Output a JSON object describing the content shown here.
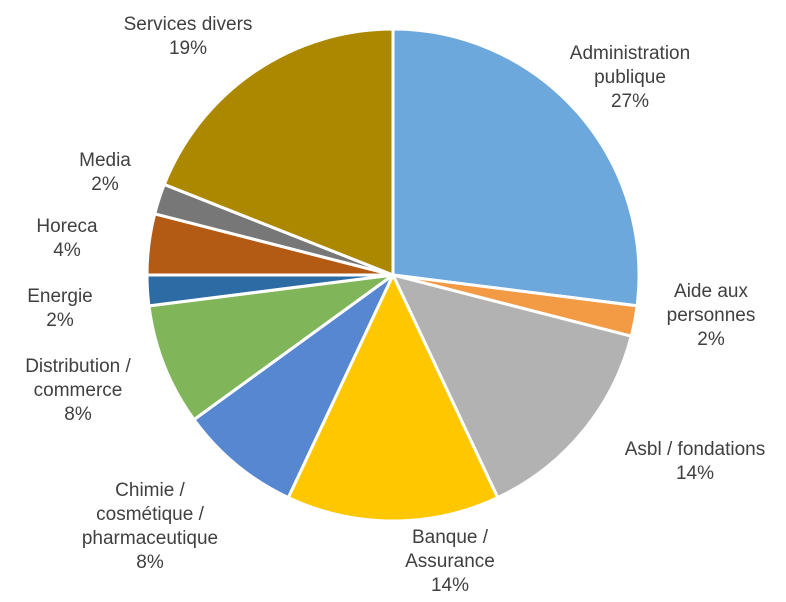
{
  "chart_data": {
    "type": "pie",
    "title": "",
    "slices": [
      {
        "label": [
          "Administration",
          "publique"
        ],
        "percent_label": "27%",
        "value": 27,
        "color": "#6ca8dc"
      },
      {
        "label": [
          "Aide aux",
          "personnes"
        ],
        "percent_label": "2%",
        "value": 2,
        "color": "#f39a45"
      },
      {
        "label": [
          "Asbl / fondations"
        ],
        "percent_label": "14%",
        "value": 14,
        "color": "#b2b2b2"
      },
      {
        "label": [
          "Banque /",
          "Assurance"
        ],
        "percent_label": "14%",
        "value": 14,
        "color": "#fec700"
      },
      {
        "label": [
          "Chimie /",
          "cosmétique /",
          "pharmaceutique"
        ],
        "percent_label": "8%",
        "value": 8,
        "color": "#5687d0"
      },
      {
        "label": [
          "Distribution /",
          "commerce"
        ],
        "percent_label": "8%",
        "value": 8,
        "color": "#80b659"
      },
      {
        "label": [
          "Energie"
        ],
        "percent_label": "2%",
        "value": 2,
        "color": "#2d6ba5"
      },
      {
        "label": [
          "Horeca"
        ],
        "percent_label": "4%",
        "value": 4,
        "color": "#b35a14"
      },
      {
        "label": [
          "Media"
        ],
        "percent_label": "2%",
        "value": 2,
        "color": "#777777"
      },
      {
        "label": [
          "Services divers"
        ],
        "percent_label": "19%",
        "value": 19,
        "color": "#ac8700"
      }
    ]
  }
}
